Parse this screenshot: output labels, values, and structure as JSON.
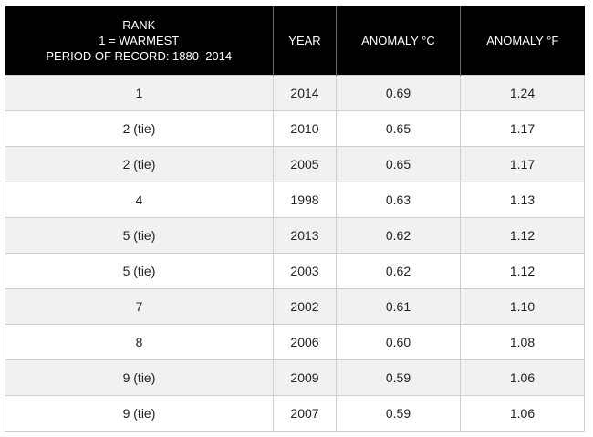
{
  "header": {
    "rank_lines": [
      "RANK",
      "1 = WARMEST",
      "PERIOD OF RECORD: 1880–2014"
    ],
    "year": "YEAR",
    "anomaly_c": "ANOMALY °C",
    "anomaly_f": "ANOMALY °F"
  },
  "rows": [
    {
      "rank": "1",
      "year": "2014",
      "c": "0.69",
      "f": "1.24"
    },
    {
      "rank": "2 (tie)",
      "year": "2010",
      "c": "0.65",
      "f": "1.17"
    },
    {
      "rank": "2 (tie)",
      "year": "2005",
      "c": "0.65",
      "f": "1.17"
    },
    {
      "rank": "4",
      "year": "1998",
      "c": "0.63",
      "f": "1.13"
    },
    {
      "rank": "5 (tie)",
      "year": "2013",
      "c": "0.62",
      "f": "1.12"
    },
    {
      "rank": "5 (tie)",
      "year": "2003",
      "c": "0.62",
      "f": "1.12"
    },
    {
      "rank": "7",
      "year": "2002",
      "c": "0.61",
      "f": "1.10"
    },
    {
      "rank": "8",
      "year": "2006",
      "c": "0.60",
      "f": "1.08"
    },
    {
      "rank": "9 (tie)",
      "year": "2009",
      "c": "0.59",
      "f": "1.06"
    },
    {
      "rank": "9 (tie)",
      "year": "2007",
      "c": "0.59",
      "f": "1.06"
    }
  ]
}
